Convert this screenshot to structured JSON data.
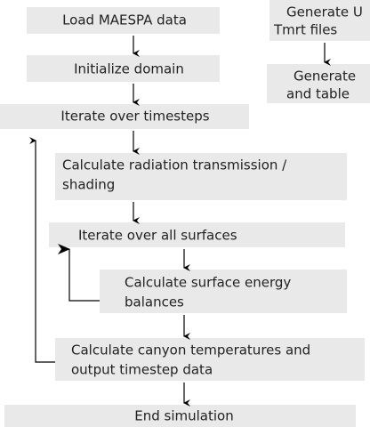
{
  "nodes": [
    {
      "lines": [
        "Load MAESPA data"
      ]
    },
    {
      "lines": [
        "Initialize domain"
      ]
    },
    {
      "lines": [
        "Iterate over timesteps"
      ]
    },
    {
      "lines": [
        "Calculate radiation transmission /",
        "shading"
      ]
    },
    {
      "lines": [
        "Iterate over all surfaces"
      ]
    },
    {
      "lines": [
        "Calculate surface energy",
        "balances"
      ]
    },
    {
      "lines": [
        "Calculate canyon temperatures and",
        "output timestep data"
      ]
    },
    {
      "lines": [
        "End simulation"
      ]
    },
    {
      "lines": [
        "Generate U",
        "Tmrt files"
      ]
    },
    {
      "lines": [
        "Generate",
        "and table"
      ]
    }
  ]
}
